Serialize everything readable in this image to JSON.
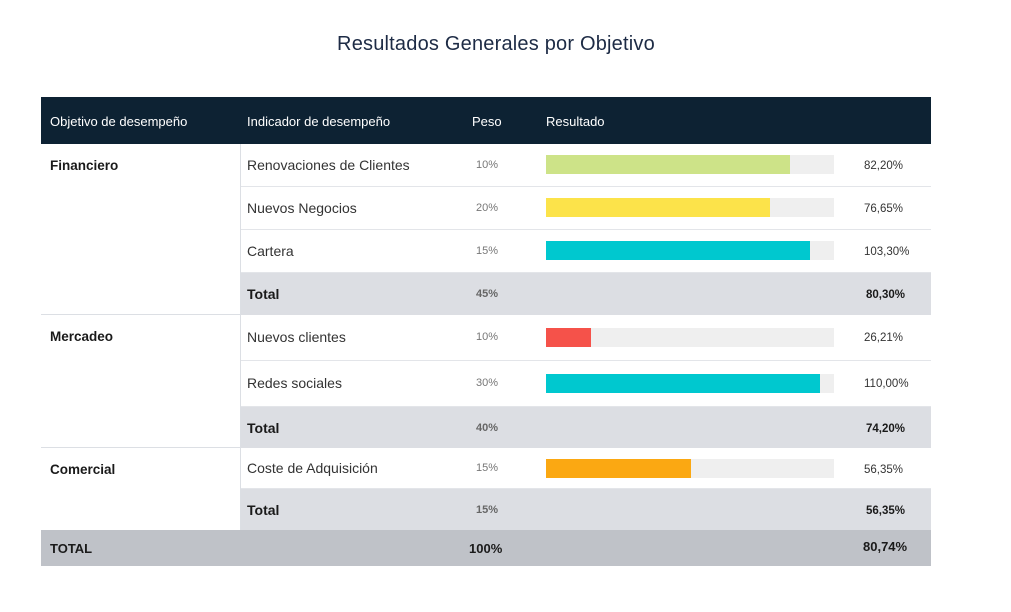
{
  "title": "Resultados Generales por Objetivo",
  "headers": {
    "objetivo": "Objetivo de desempeño",
    "indicador": "Indicador de desempeño",
    "peso": "Peso",
    "resultado": "Resultado"
  },
  "groups": [
    {
      "name": "Financiero",
      "rows": [
        {
          "indicator": "Renovaciones de Clientes",
          "peso": "10%",
          "bar": 0.848,
          "color": "#cde388",
          "result": "82,20%"
        },
        {
          "indicator": "Nuevos Negocios",
          "peso": "20%",
          "bar": 0.778,
          "color": "#fce34a",
          "result": "76,65%"
        },
        {
          "indicator": "Cartera",
          "peso": "15%",
          "bar": 0.917,
          "color": "#00c8cf",
          "result": "103,30%"
        }
      ],
      "total": {
        "label": "Total",
        "peso": "45%",
        "result": "80,30%"
      }
    },
    {
      "name": "Mercadeo",
      "rows": [
        {
          "indicator": "Nuevos clientes",
          "peso": "10%",
          "bar": 0.156,
          "color": "#f5524a",
          "result": "26,21%"
        },
        {
          "indicator": "Redes sociales",
          "peso": "30%",
          "bar": 0.951,
          "color": "#00c8cf",
          "result": "110,00%"
        }
      ],
      "total": {
        "label": "Total",
        "peso": "40%",
        "result": "74,20%"
      }
    },
    {
      "name": "Comercial",
      "rows": [
        {
          "indicator": "Coste de Adquisición",
          "peso": "15%",
          "bar": 0.503,
          "color": "#fba812",
          "result": "56,35%"
        }
      ],
      "total": {
        "label": "Total",
        "peso": "15%",
        "result": "56,35%"
      }
    }
  ],
  "grand_total": {
    "label": "TOTAL",
    "peso": "100%",
    "result": "80,74%"
  }
}
